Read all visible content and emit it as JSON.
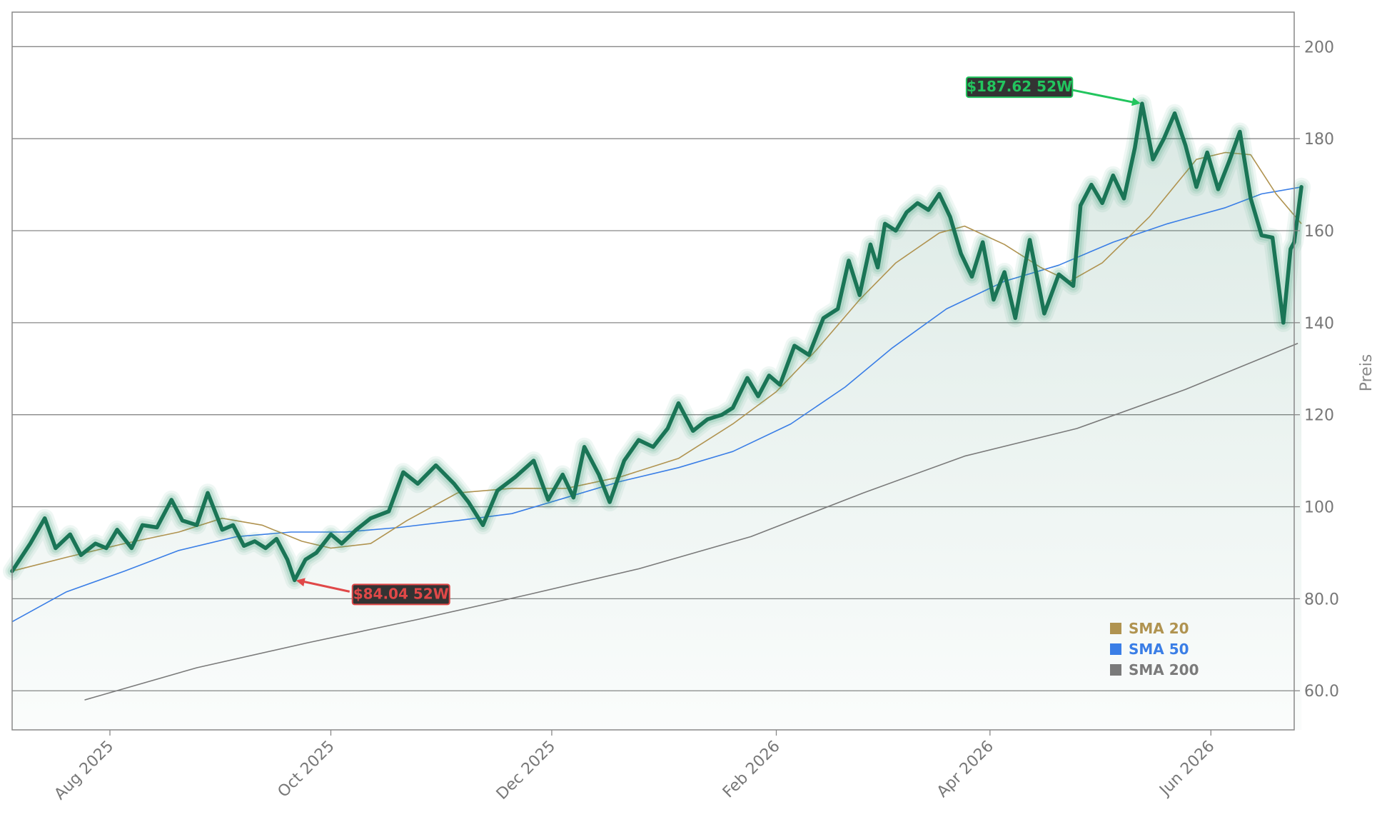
{
  "chart_data": {
    "type": "line",
    "title": "",
    "xlabel": "",
    "ylabel": "Preis",
    "ylim": [
      51.5,
      207.5
    ],
    "xlim": [
      "2025-07-05",
      "2026-06-24"
    ],
    "y_axis_side": "right",
    "y_ticks": [
      60,
      80,
      100,
      120,
      140,
      160,
      180,
      200
    ],
    "y_tick_labels": [
      "60.0",
      "80.0",
      "100",
      "120",
      "140",
      "160",
      "180",
      "200"
    ],
    "x_ticks": [
      "2025-08-01",
      "2025-10-01",
      "2025-12-01",
      "2026-02-01",
      "2026-04-01",
      "2026-06-01"
    ],
    "x_tick_labels": [
      "Aug 2025",
      "Oct 2025",
      "Dec 2025",
      "Feb 2026",
      "Apr 2026",
      "Jun 2026"
    ],
    "grid": "horizontal",
    "legend_position": "bottom-right",
    "colors": {
      "price": "#1a7556",
      "price_glow": "#2e9b6e",
      "area_fill": "#1a7556",
      "sma20": "#b09350",
      "sma50": "#3a7ee6",
      "sma200": "#7a7a7a",
      "high_annotation": "#22c55e",
      "low_annotation": "#e04848",
      "annotation_bg": "#333333",
      "grid": "#888888",
      "text": "#777777"
    },
    "series": [
      {
        "name": "Preis",
        "role": "price",
        "points": [
          [
            "2025-07-05",
            86.0
          ],
          [
            "2025-07-10",
            92.0
          ],
          [
            "2025-07-14",
            97.5
          ],
          [
            "2025-07-17",
            91.0
          ],
          [
            "2025-07-21",
            94.0
          ],
          [
            "2025-07-24",
            89.5
          ],
          [
            "2025-07-28",
            92.0
          ],
          [
            "2025-07-31",
            91.0
          ],
          [
            "2025-08-03",
            95.0
          ],
          [
            "2025-08-07",
            91.0
          ],
          [
            "2025-08-10",
            96.0
          ],
          [
            "2025-08-14",
            95.5
          ],
          [
            "2025-08-18",
            101.5
          ],
          [
            "2025-08-21",
            97.0
          ],
          [
            "2025-08-25",
            96.0
          ],
          [
            "2025-08-28",
            103.0
          ],
          [
            "2025-09-01",
            95.0
          ],
          [
            "2025-09-04",
            96.0
          ],
          [
            "2025-09-07",
            91.5
          ],
          [
            "2025-09-10",
            92.5
          ],
          [
            "2025-09-13",
            91.0
          ],
          [
            "2025-09-16",
            93.0
          ],
          [
            "2025-09-19",
            88.5
          ],
          [
            "2025-09-21",
            84.04
          ],
          [
            "2025-09-24",
            88.5
          ],
          [
            "2025-09-27",
            90.0
          ],
          [
            "2025-10-01",
            94.0
          ],
          [
            "2025-10-04",
            92.0
          ],
          [
            "2025-10-08",
            95.0
          ],
          [
            "2025-10-12",
            97.5
          ],
          [
            "2025-10-17",
            99.0
          ],
          [
            "2025-10-21",
            107.5
          ],
          [
            "2025-10-25",
            105.0
          ],
          [
            "2025-10-30",
            109.0
          ],
          [
            "2025-11-04",
            105.0
          ],
          [
            "2025-11-08",
            101.0
          ],
          [
            "2025-11-12",
            96.0
          ],
          [
            "2025-11-16",
            103.5
          ],
          [
            "2025-11-21",
            106.5
          ],
          [
            "2025-11-26",
            110.0
          ],
          [
            "2025-11-30",
            101.5
          ],
          [
            "2025-12-04",
            107.0
          ],
          [
            "2025-12-07",
            102.0
          ],
          [
            "2025-12-10",
            113.0
          ],
          [
            "2025-12-14",
            107.0
          ],
          [
            "2025-12-17",
            101.0
          ],
          [
            "2025-12-21",
            110.0
          ],
          [
            "2025-12-25",
            114.5
          ],
          [
            "2025-12-29",
            113.0
          ],
          [
            "2026-01-02",
            117.0
          ],
          [
            "2026-01-05",
            122.5
          ],
          [
            "2026-01-09",
            116.5
          ],
          [
            "2026-01-13",
            119.0
          ],
          [
            "2026-01-17",
            120.0
          ],
          [
            "2026-01-20",
            121.5
          ],
          [
            "2026-01-24",
            128.0
          ],
          [
            "2026-01-27",
            124.0
          ],
          [
            "2026-01-30",
            128.5
          ],
          [
            "2026-02-02",
            126.5
          ],
          [
            "2026-02-06",
            135.0
          ],
          [
            "2026-02-10",
            133.0
          ],
          [
            "2026-02-14",
            141.0
          ],
          [
            "2026-02-18",
            143.0
          ],
          [
            "2026-02-21",
            153.5
          ],
          [
            "2026-02-24",
            146.0
          ],
          [
            "2026-02-27",
            157.0
          ],
          [
            "2026-03-01",
            152.0
          ],
          [
            "2026-03-03",
            161.5
          ],
          [
            "2026-03-06",
            160.0
          ],
          [
            "2026-03-09",
            164.0
          ],
          [
            "2026-03-12",
            166.0
          ],
          [
            "2026-03-15",
            164.5
          ],
          [
            "2026-03-18",
            168.0
          ],
          [
            "2026-03-21",
            163.0
          ],
          [
            "2026-03-24",
            155.0
          ],
          [
            "2026-03-27",
            150.0
          ],
          [
            "2026-03-30",
            157.5
          ],
          [
            "2026-04-02",
            145.0
          ],
          [
            "2026-04-05",
            151.0
          ],
          [
            "2026-04-08",
            141.0
          ],
          [
            "2026-04-12",
            158.0
          ],
          [
            "2026-04-16",
            142.0
          ],
          [
            "2026-04-20",
            150.5
          ],
          [
            "2026-04-24",
            148.0
          ],
          [
            "2026-04-26",
            165.5
          ],
          [
            "2026-04-29",
            170.0
          ],
          [
            "2026-05-02",
            166.0
          ],
          [
            "2026-05-05",
            172.0
          ],
          [
            "2026-05-08",
            167.0
          ],
          [
            "2026-05-11",
            178.0
          ],
          [
            "2026-05-13",
            187.62
          ],
          [
            "2026-05-16",
            175.5
          ],
          [
            "2026-05-19",
            180.0
          ],
          [
            "2026-05-22",
            185.5
          ],
          [
            "2026-05-25",
            178.5
          ],
          [
            "2026-05-28",
            169.5
          ],
          [
            "2026-05-31",
            177.0
          ],
          [
            "2026-06-03",
            169.0
          ],
          [
            "2026-06-06",
            175.0
          ],
          [
            "2026-06-09",
            181.5
          ],
          [
            "2026-06-12",
            167.0
          ],
          [
            "2026-06-15",
            159.0
          ],
          [
            "2026-06-18",
            158.5
          ],
          [
            "2026-06-21",
            140.0
          ],
          [
            "2026-06-23",
            156.0
          ],
          [
            "2026-06-24",
            157.5
          ],
          [
            "2026-06-26",
            169.5
          ]
        ]
      },
      {
        "name": "SMA 20",
        "role": "sma20",
        "points": [
          [
            "2025-07-05",
            86.0
          ],
          [
            "2025-07-20",
            89.0
          ],
          [
            "2025-08-05",
            92.0
          ],
          [
            "2025-08-20",
            94.5
          ],
          [
            "2025-09-01",
            97.5
          ],
          [
            "2025-09-12",
            96.0
          ],
          [
            "2025-09-23",
            92.5
          ],
          [
            "2025-10-01",
            91.0
          ],
          [
            "2025-10-12",
            92.0
          ],
          [
            "2025-10-22",
            97.0
          ],
          [
            "2025-11-05",
            103.0
          ],
          [
            "2025-11-20",
            104.0
          ],
          [
            "2025-12-05",
            104.0
          ],
          [
            "2025-12-20",
            106.5
          ],
          [
            "2026-01-05",
            110.5
          ],
          [
            "2026-01-20",
            118.0
          ],
          [
            "2026-02-01",
            125.0
          ],
          [
            "2026-02-12",
            134.0
          ],
          [
            "2026-02-24",
            145.0
          ],
          [
            "2026-03-06",
            153.0
          ],
          [
            "2026-03-18",
            159.5
          ],
          [
            "2026-03-25",
            161.0
          ],
          [
            "2026-04-05",
            157.0
          ],
          [
            "2026-04-15",
            152.0
          ],
          [
            "2026-04-23",
            149.0
          ],
          [
            "2026-05-02",
            153.0
          ],
          [
            "2026-05-15",
            163.0
          ],
          [
            "2026-05-28",
            175.5
          ],
          [
            "2026-06-05",
            177.0
          ],
          [
            "2026-06-12",
            176.5
          ],
          [
            "2026-06-19",
            168.0
          ],
          [
            "2026-06-26",
            161.5
          ]
        ]
      },
      {
        "name": "SMA 50",
        "role": "sma50",
        "points": [
          [
            "2025-07-05",
            75.0
          ],
          [
            "2025-07-20",
            81.5
          ],
          [
            "2025-08-05",
            86.0
          ],
          [
            "2025-08-20",
            90.5
          ],
          [
            "2025-09-05",
            93.5
          ],
          [
            "2025-09-20",
            94.5
          ],
          [
            "2025-10-05",
            94.5
          ],
          [
            "2025-10-20",
            95.5
          ],
          [
            "2025-11-05",
            97.0
          ],
          [
            "2025-11-20",
            98.5
          ],
          [
            "2025-12-05",
            102.0
          ],
          [
            "2025-12-20",
            105.5
          ],
          [
            "2026-01-05",
            108.5
          ],
          [
            "2026-01-20",
            112.0
          ],
          [
            "2026-02-05",
            118.0
          ],
          [
            "2026-02-20",
            126.0
          ],
          [
            "2026-03-05",
            134.5
          ],
          [
            "2026-03-20",
            143.0
          ],
          [
            "2026-04-05",
            149.0
          ],
          [
            "2026-04-20",
            152.5
          ],
          [
            "2026-05-05",
            157.5
          ],
          [
            "2026-05-20",
            161.5
          ],
          [
            "2026-06-05",
            165.0
          ],
          [
            "2026-06-15",
            168.0
          ],
          [
            "2026-06-26",
            169.5
          ]
        ]
      },
      {
        "name": "SMA 200",
        "role": "sma200",
        "points": [
          [
            "2025-07-25",
            58.0
          ],
          [
            "2025-08-25",
            65.0
          ],
          [
            "2025-09-25",
            70.5
          ],
          [
            "2025-10-25",
            75.5
          ],
          [
            "2025-11-25",
            81.0
          ],
          [
            "2025-12-25",
            86.5
          ],
          [
            "2026-01-25",
            93.5
          ],
          [
            "2026-02-25",
            103.0
          ],
          [
            "2026-03-25",
            111.0
          ],
          [
            "2026-04-25",
            117.0
          ],
          [
            "2026-05-25",
            125.5
          ],
          [
            "2026-06-25",
            135.5
          ]
        ]
      }
    ],
    "annotations": [
      {
        "label": "$187.62 52W",
        "kind": "high",
        "x": "2026-05-13",
        "y": 187.62
      },
      {
        "label": "$84.04 52W",
        "kind": "low",
        "x": "2025-09-21",
        "y": 84.04
      }
    ],
    "legend": [
      {
        "label": "SMA 20",
        "color": "#b09350"
      },
      {
        "label": "SMA 50",
        "color": "#3a7ee6"
      },
      {
        "label": "SMA 200",
        "color": "#7a7a7a"
      }
    ]
  }
}
